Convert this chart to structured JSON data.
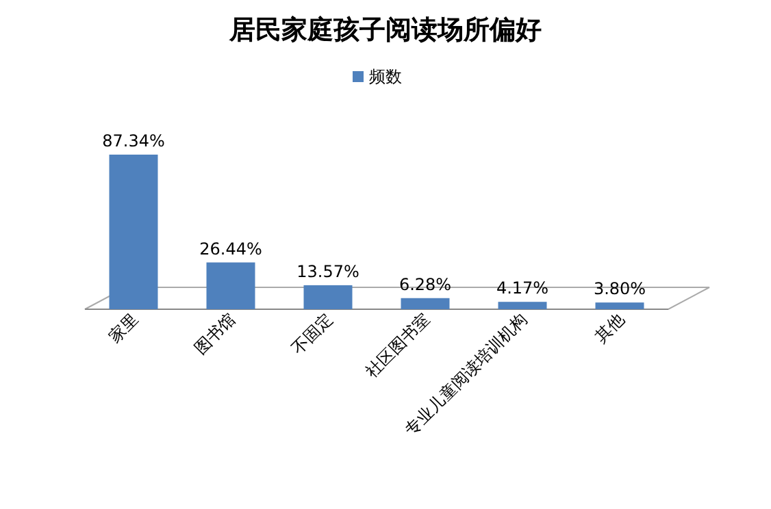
{
  "chart_data": {
    "type": "bar",
    "title": "居民家庭孩子阅读场所偏好",
    "categories": [
      "家里",
      "图书馆",
      "不固定",
      "社区图书室",
      "专业儿童阅读培训机构",
      "其他"
    ],
    "series": [
      {
        "name": "频数",
        "color": "#4f81bd",
        "values": [
          87.34,
          26.44,
          13.57,
          6.28,
          4.17,
          3.8
        ],
        "value_labels": [
          "87.34%",
          "26.44%",
          "13.57%",
          "6.28%",
          "4.17%",
          "3.80%"
        ]
      }
    ],
    "legend": "top"
  }
}
